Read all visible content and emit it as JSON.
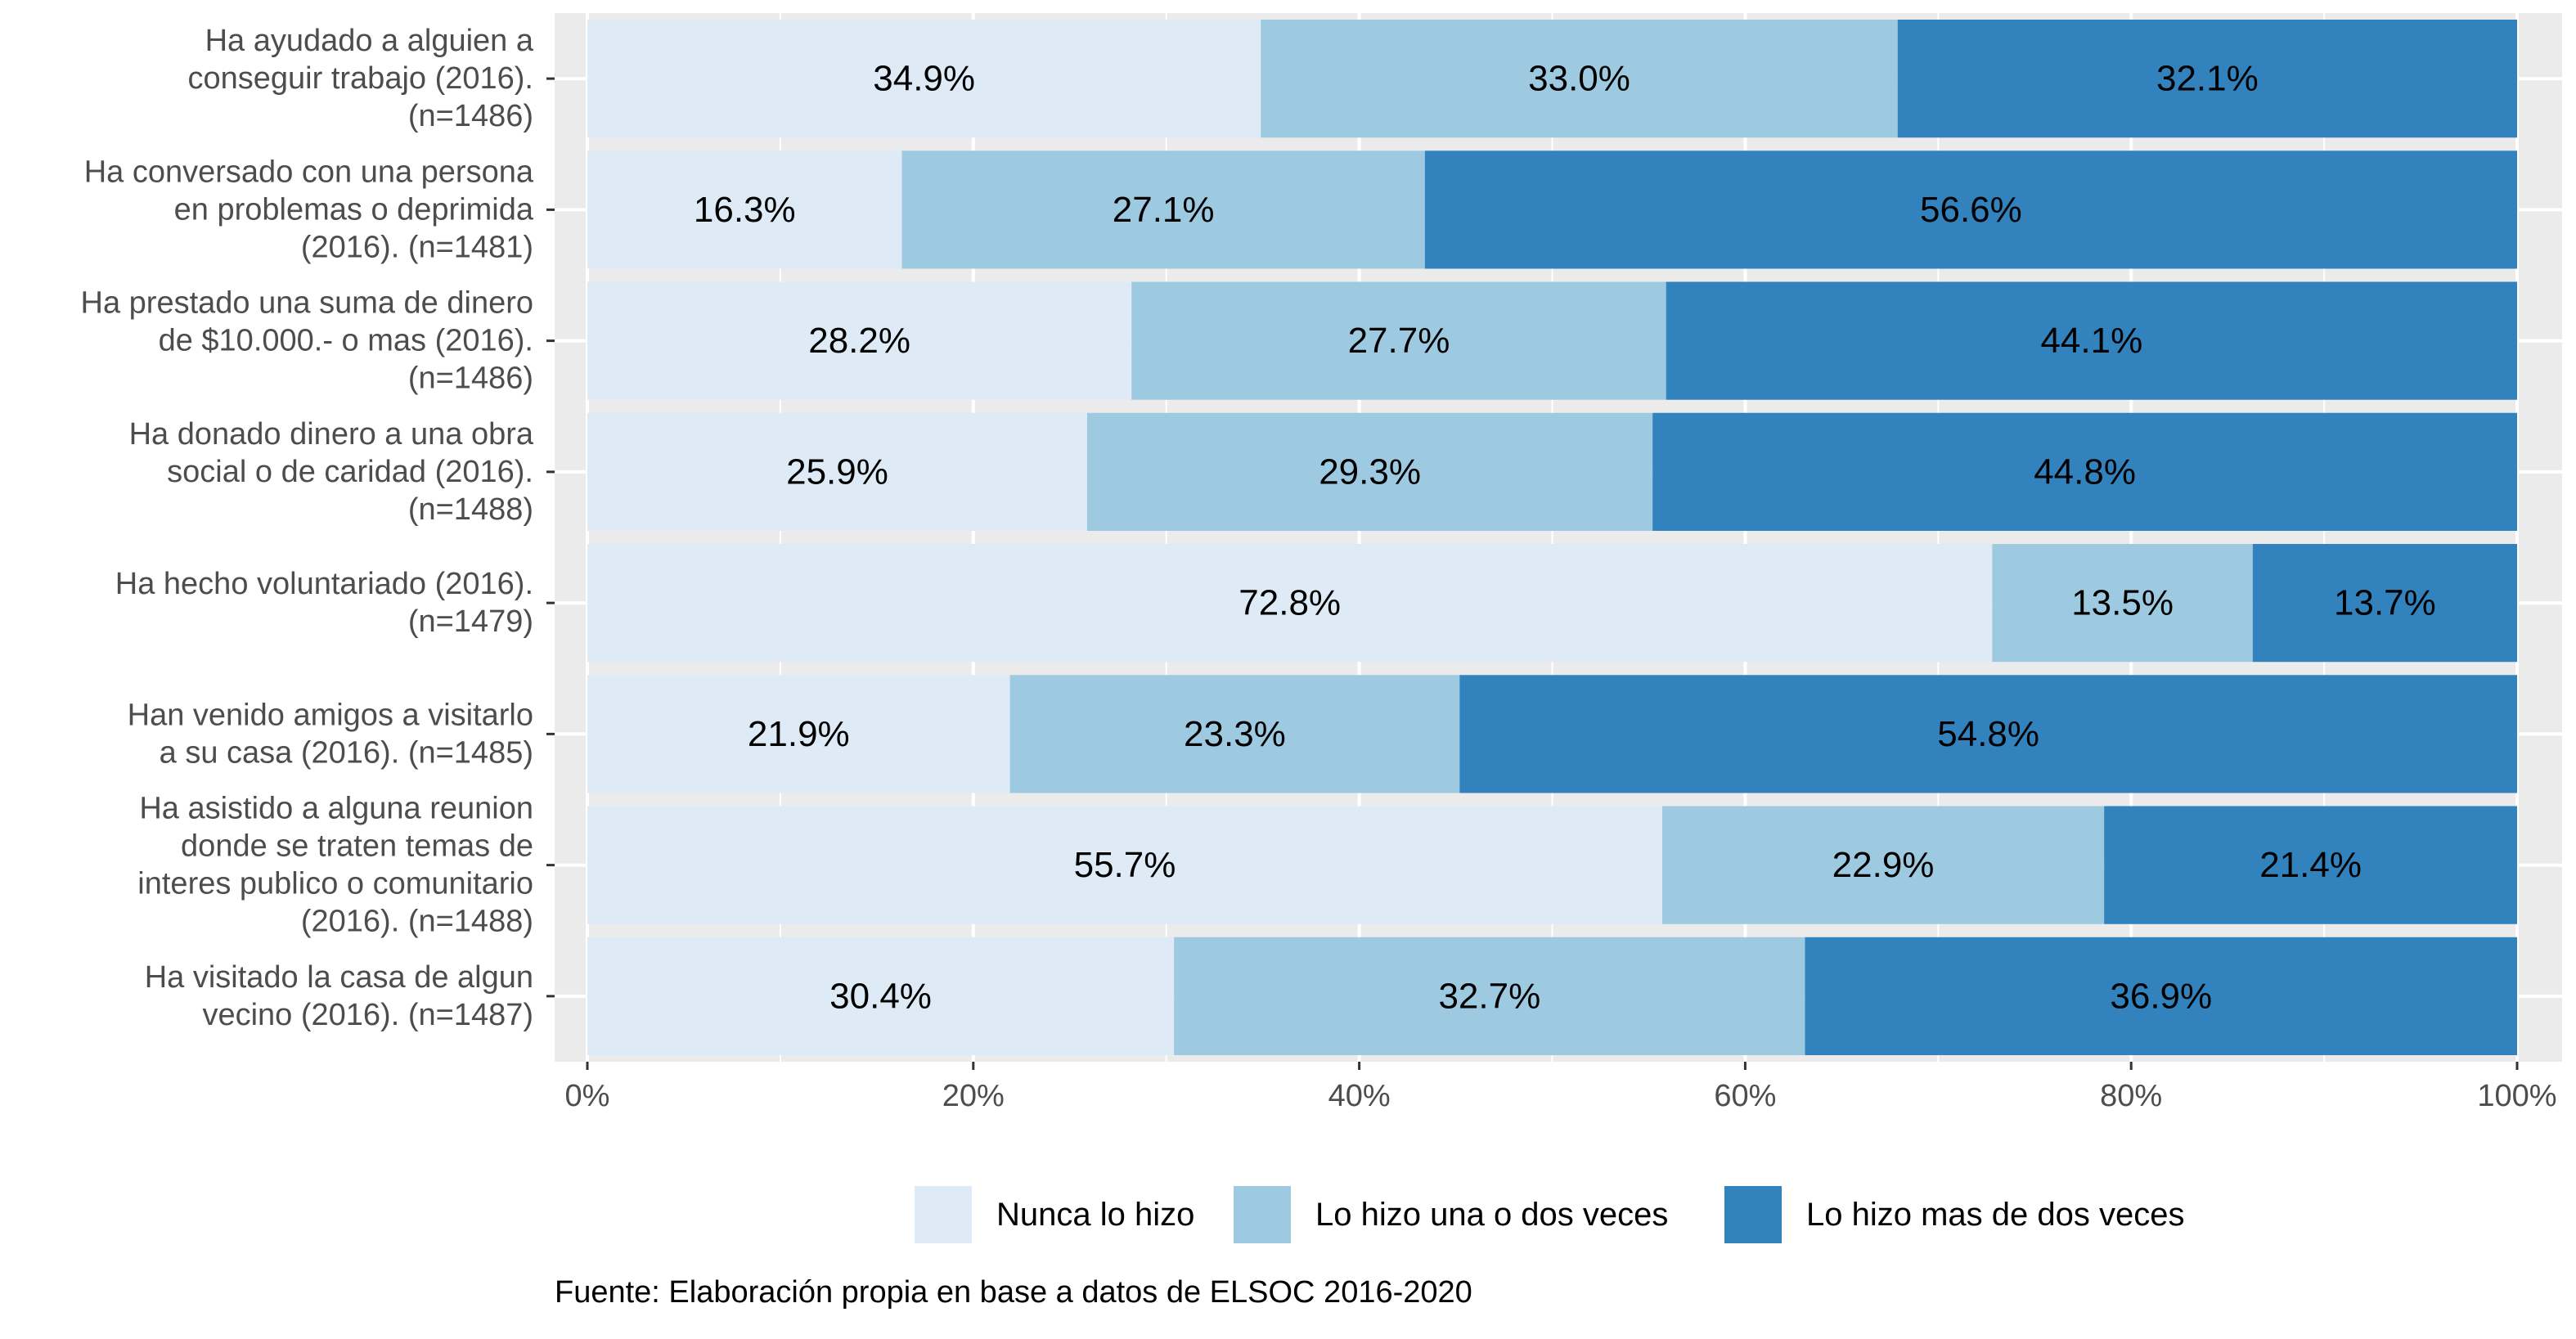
{
  "chart_data": {
    "type": "bar",
    "orientation": "horizontal",
    "stacked": true,
    "normalized": true,
    "title": "",
    "xlabel": "",
    "ylabel": "",
    "xlim": [
      0,
      100
    ],
    "x_ticks": [
      "0%",
      "20%",
      "40%",
      "60%",
      "80%",
      "100%"
    ],
    "grid": true,
    "legend_position": "bottom",
    "caption": "Fuente: Elaboración propia en base a datos de ELSOC 2016-2020",
    "categories": [
      [
        "Ha ayudado a alguien a",
        "conseguir trabajo (2016).",
        "(n=1486)"
      ],
      [
        "Ha conversado con una persona",
        "en problemas o deprimida",
        "(2016). (n=1481)"
      ],
      [
        "Ha prestado una suma de dinero",
        "de $10.000.- o mas (2016).",
        "(n=1486)"
      ],
      [
        "Ha donado dinero a una obra",
        "social o de caridad (2016).",
        "(n=1488)"
      ],
      [
        "Ha hecho voluntariado (2016).",
        "(n=1479)"
      ],
      [
        "Han venido amigos a visitarlo",
        "a su casa (2016). (n=1485)"
      ],
      [
        "Ha asistido a alguna reunion",
        "donde se traten temas de",
        "interes publico o comunitario",
        "(2016). (n=1488)"
      ],
      [
        "Ha visitado la casa de algun",
        "vecino (2016). (n=1487)"
      ]
    ],
    "series": [
      {
        "name": "Nunca lo hizo",
        "color": "#deebf7",
        "values": [
          34.9,
          16.3,
          28.2,
          25.9,
          72.8,
          21.9,
          55.7,
          30.4
        ]
      },
      {
        "name": "Lo hizo una o dos veces",
        "color": "#9ecae1",
        "values": [
          33.0,
          27.1,
          27.7,
          29.3,
          13.5,
          23.3,
          22.9,
          32.7
        ]
      },
      {
        "name": "Lo hizo mas de dos veces",
        "color": "#3182bd",
        "values": [
          32.1,
          56.6,
          44.1,
          44.8,
          13.7,
          54.8,
          21.4,
          36.9
        ]
      }
    ],
    "colors": {
      "panel_background": "#ebebeb",
      "grid": "#ffffff",
      "text": "#4d4d4d"
    }
  }
}
